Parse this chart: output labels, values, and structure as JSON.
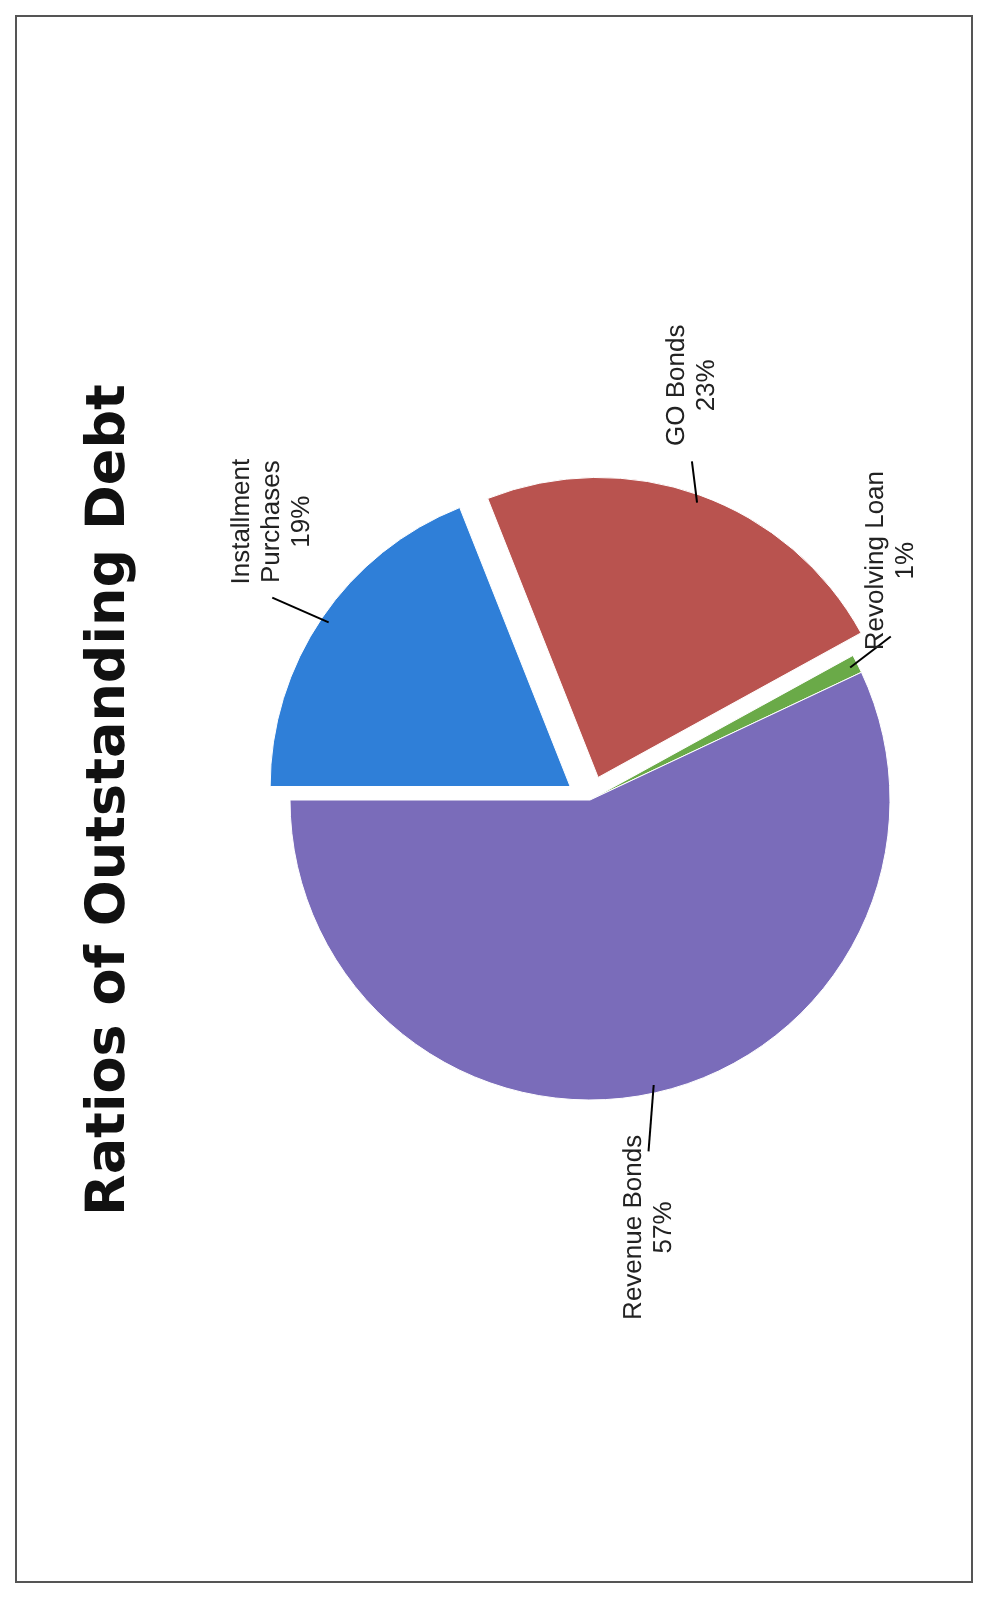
{
  "chart_data": {
    "type": "pie",
    "title": "Ratios of Outstanding Debt",
    "categories": [
      "Installment Purchases",
      "GO Bonds",
      "Revolving Loan",
      "Revenue Bonds"
    ],
    "values": [
      19,
      23,
      1,
      57
    ],
    "colors": [
      "#2f7fd8",
      "#b9534f",
      "#6aaa48",
      "#7a6cba"
    ],
    "value_labels": [
      "19%",
      "23%",
      "1%",
      "57%"
    ]
  }
}
